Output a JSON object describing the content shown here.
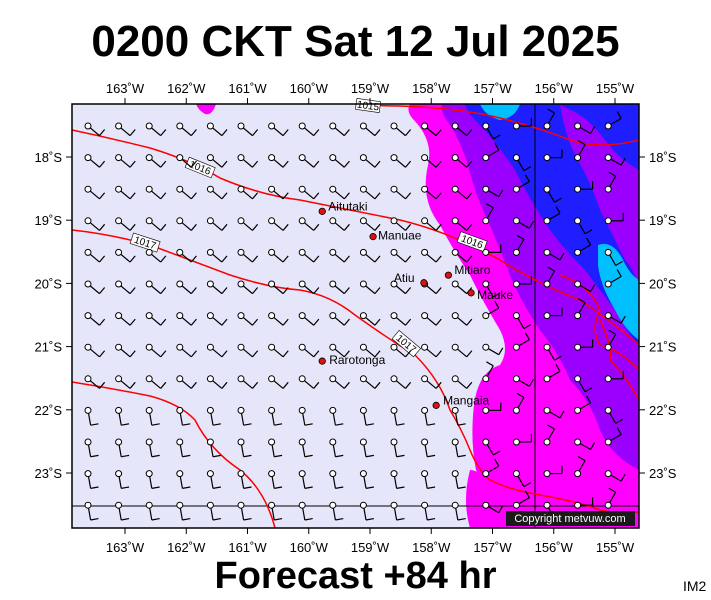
{
  "title": "0200 CKT Sat 12 Jul 2025",
  "footer": "Forecast +84 hr",
  "image_code": "IM2",
  "copyright": "Copyright metvuw.com",
  "lon_labels": [
    "163˚W",
    "162˚W",
    "161˚W",
    "160˚W",
    "159˚W",
    "158˚W",
    "157˚W",
    "156˚W",
    "155˚W"
  ],
  "lat_labels": [
    "18˚S",
    "19˚S",
    "20˚S",
    "21˚S",
    "22˚S",
    "23˚S"
  ],
  "places": [
    {
      "name": "Aitutaki",
      "lon": -159.78,
      "lat": -18.86
    },
    {
      "name": "Manuae",
      "lon": -158.95,
      "lat": -19.26
    },
    {
      "name": "Atiu",
      "lon": -158.12,
      "lat": -19.99
    },
    {
      "name": "Mitiaro",
      "lon": -157.72,
      "lat": -19.87
    },
    {
      "name": "Mauke",
      "lon": -157.35,
      "lat": -20.15
    },
    {
      "name": "Rarotonga",
      "lon": -159.78,
      "lat": -21.23
    },
    {
      "name": "Mangaia",
      "lon": -157.92,
      "lat": -21.93
    }
  ],
  "isobar_labels": [
    "1015",
    "1016",
    "1017",
    "1016",
    "1017"
  ],
  "colors": {
    "background": "#e6e6fa",
    "magenta": "#ff00ff",
    "purple": "#9b00ff",
    "blue": "#1e1eff",
    "cyan": "#00bfff",
    "isobar": "#ff0000"
  }
}
